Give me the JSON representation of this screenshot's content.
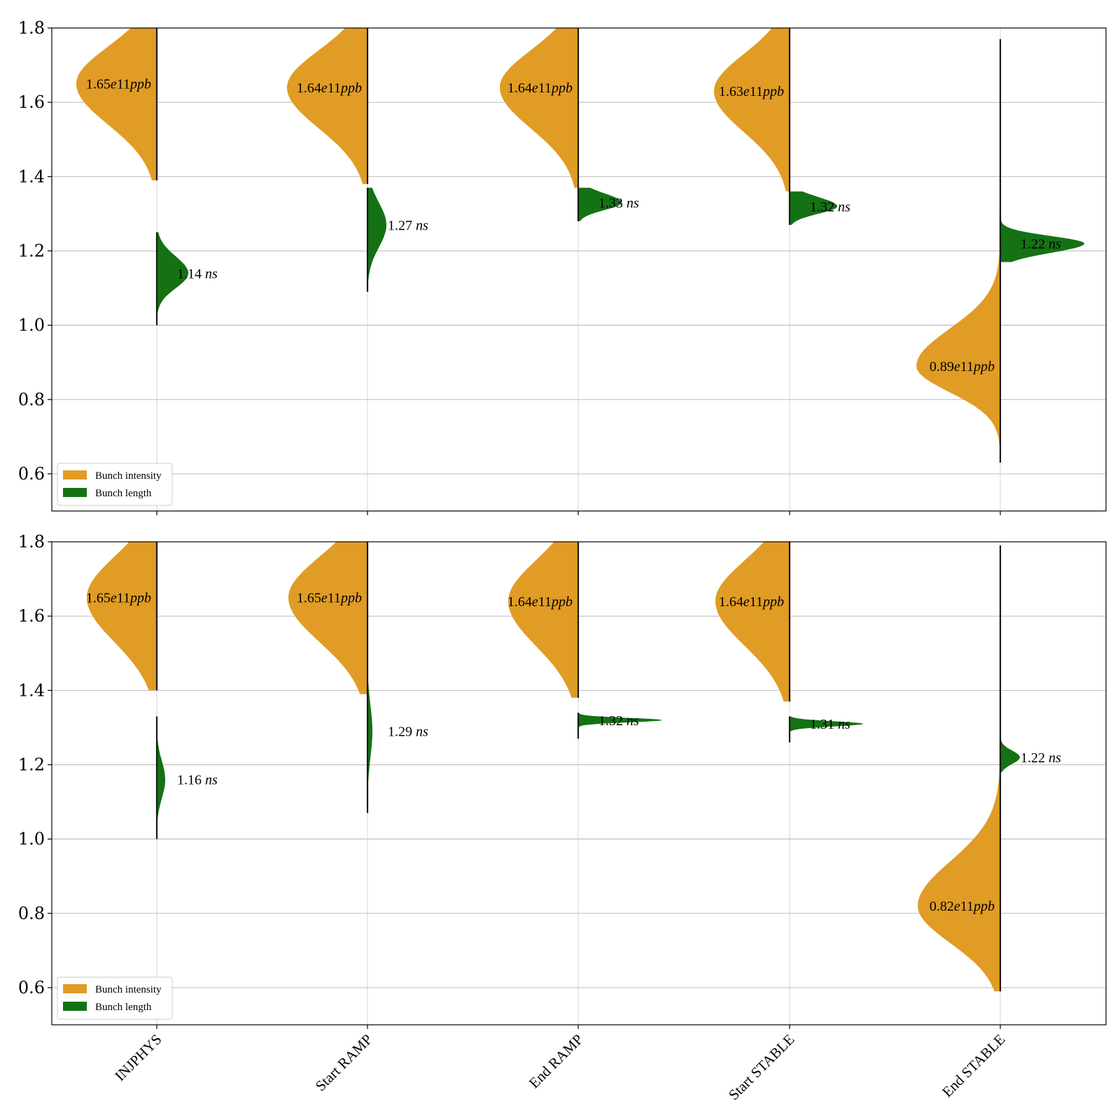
{
  "chart_data": [
    {
      "type": "violin",
      "ylim": [
        0.5,
        1.8
      ],
      "yticks": [
        0.6,
        0.8,
        1.0,
        1.2,
        1.4,
        1.6,
        1.8
      ],
      "ytick_labels": [
        "0.6",
        "0.8",
        "1.0",
        "1.2",
        "1.4",
        "1.6",
        "1.8"
      ],
      "grid": "horizontal",
      "legend_position": "lower-left",
      "categories": [
        "INJPHYS",
        "Start RAMP",
        "End RAMP",
        "Start STABLE",
        "End STABLE"
      ],
      "series": [
        {
          "name": "Bunch intensity",
          "color": "#E09C24",
          "side": "left",
          "medians": [
            1.65,
            1.64,
            1.64,
            1.63,
            0.89
          ],
          "ranges": [
            [
              1.39,
              1.82
            ],
            [
              1.38,
              1.82
            ],
            [
              1.37,
              1.82
            ],
            [
              1.36,
              1.82
            ],
            [
              0.63,
              1.77
            ]
          ],
          "annotations": [
            {
              "num": "1.65",
              "exp": "e11",
              "unit": "ppb"
            },
            {
              "num": "1.64",
              "exp": "e11",
              "unit": "ppb"
            },
            {
              "num": "1.64",
              "exp": "e11",
              "unit": "ppb"
            },
            {
              "num": "1.63",
              "exp": "e11",
              "unit": "ppb"
            },
            {
              "num": "0.89",
              "exp": "e11",
              "unit": "ppb"
            }
          ]
        },
        {
          "name": "Bunch length",
          "color": "#147214",
          "side": "right",
          "medians": [
            1.14,
            1.27,
            1.33,
            1.32,
            1.22
          ],
          "ranges": [
            [
              1.0,
              1.25
            ],
            [
              1.09,
              1.37
            ],
            [
              1.28,
              1.37
            ],
            [
              1.27,
              1.36
            ],
            [
              1.17,
              1.3
            ]
          ],
          "annotations": [
            {
              "num": "1.14",
              "unit": "ns"
            },
            {
              "num": "1.27",
              "unit": "ns"
            },
            {
              "num": "1.33",
              "unit": "ns"
            },
            {
              "num": "1.32",
              "unit": "ns"
            },
            {
              "num": "1.22",
              "unit": "ns"
            }
          ]
        }
      ]
    },
    {
      "type": "violin",
      "ylim": [
        0.5,
        1.8
      ],
      "yticks": [
        0.6,
        0.8,
        1.0,
        1.2,
        1.4,
        1.6,
        1.8
      ],
      "ytick_labels": [
        "0.6",
        "0.8",
        "1.0",
        "1.2",
        "1.4",
        "1.6",
        "1.8"
      ],
      "grid": "horizontal",
      "legend_position": "lower-left",
      "categories": [
        "INJPHYS",
        "Start RAMP",
        "End RAMP",
        "Start STABLE",
        "End STABLE"
      ],
      "xtick_labels": [
        "INJPHYS",
        "Start RAMP",
        "End RAMP",
        "Start STABLE",
        "End STABLE"
      ],
      "series": [
        {
          "name": "Bunch intensity",
          "color": "#E09C24",
          "side": "left",
          "medians": [
            1.65,
            1.65,
            1.64,
            1.64,
            0.82
          ],
          "ranges": [
            [
              1.4,
              1.82
            ],
            [
              1.39,
              1.82
            ],
            [
              1.38,
              1.82
            ],
            [
              1.37,
              1.82
            ],
            [
              0.59,
              1.79
            ]
          ],
          "annotations": [
            {
              "num": "1.65",
              "exp": "e11",
              "unit": "ppb"
            },
            {
              "num": "1.65",
              "exp": "e11",
              "unit": "ppb"
            },
            {
              "num": "1.64",
              "exp": "e11",
              "unit": "ppb"
            },
            {
              "num": "1.64",
              "exp": "e11",
              "unit": "ppb"
            },
            {
              "num": "0.82",
              "exp": "e11",
              "unit": "ppb"
            }
          ]
        },
        {
          "name": "Bunch length",
          "color": "#147214",
          "side": "right",
          "medians": [
            1.16,
            1.29,
            1.32,
            1.31,
            1.22
          ],
          "ranges": [
            [
              1.0,
              1.33
            ],
            [
              1.07,
              1.42
            ],
            [
              1.27,
              1.34
            ],
            [
              1.26,
              1.33
            ],
            [
              1.18,
              1.27
            ]
          ],
          "annotations": [
            {
              "num": "1.16",
              "unit": "ns"
            },
            {
              "num": "1.29",
              "unit": "ns"
            },
            {
              "num": "1.32",
              "unit": "ns"
            },
            {
              "num": "1.31",
              "unit": "ns"
            },
            {
              "num": "1.22",
              "unit": "ns"
            }
          ]
        }
      ]
    }
  ]
}
